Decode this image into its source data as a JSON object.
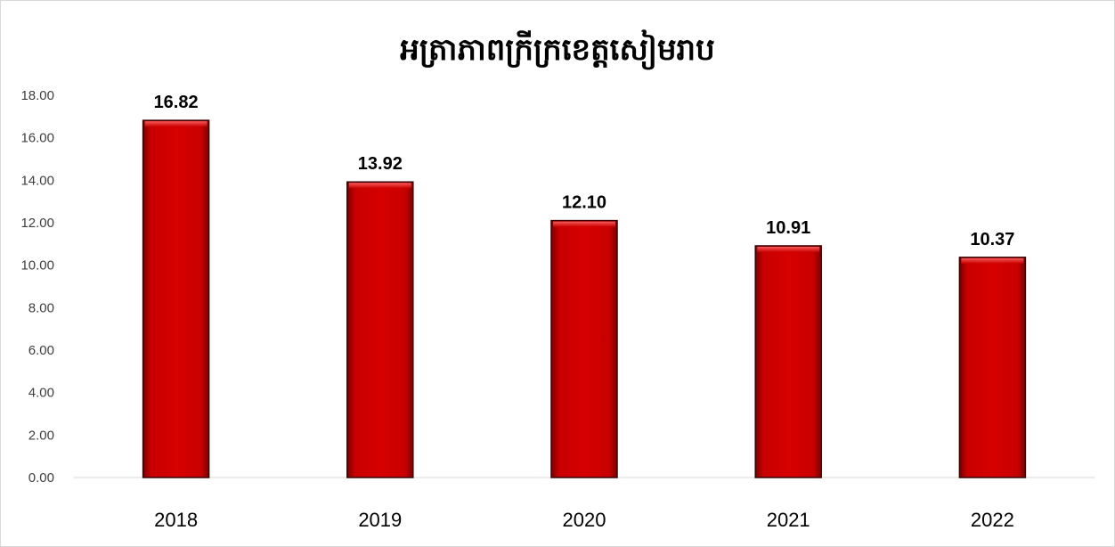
{
  "chart_data": {
    "type": "bar",
    "title": "អត្រាភាពក្រីក្រខេត្តសៀមរាប",
    "xlabel": "",
    "ylabel": "",
    "categories": [
      "2018",
      "2019",
      "2020",
      "2021",
      "2022"
    ],
    "series": [
      {
        "values": [
          16.82,
          13.92,
          12.1,
          10.91,
          10.37
        ],
        "labels": [
          "16.82",
          "13.92",
          "12.10",
          "10.91",
          "10.37"
        ],
        "color": "#cc0000"
      }
    ],
    "ylim": [
      0,
      18
    ],
    "yticks": [
      "0.00",
      "2.00",
      "4.00",
      "6.00",
      "8.00",
      "10.00",
      "12.00",
      "14.00",
      "16.00",
      "18.00"
    ],
    "grid": false,
    "legend": "none"
  }
}
